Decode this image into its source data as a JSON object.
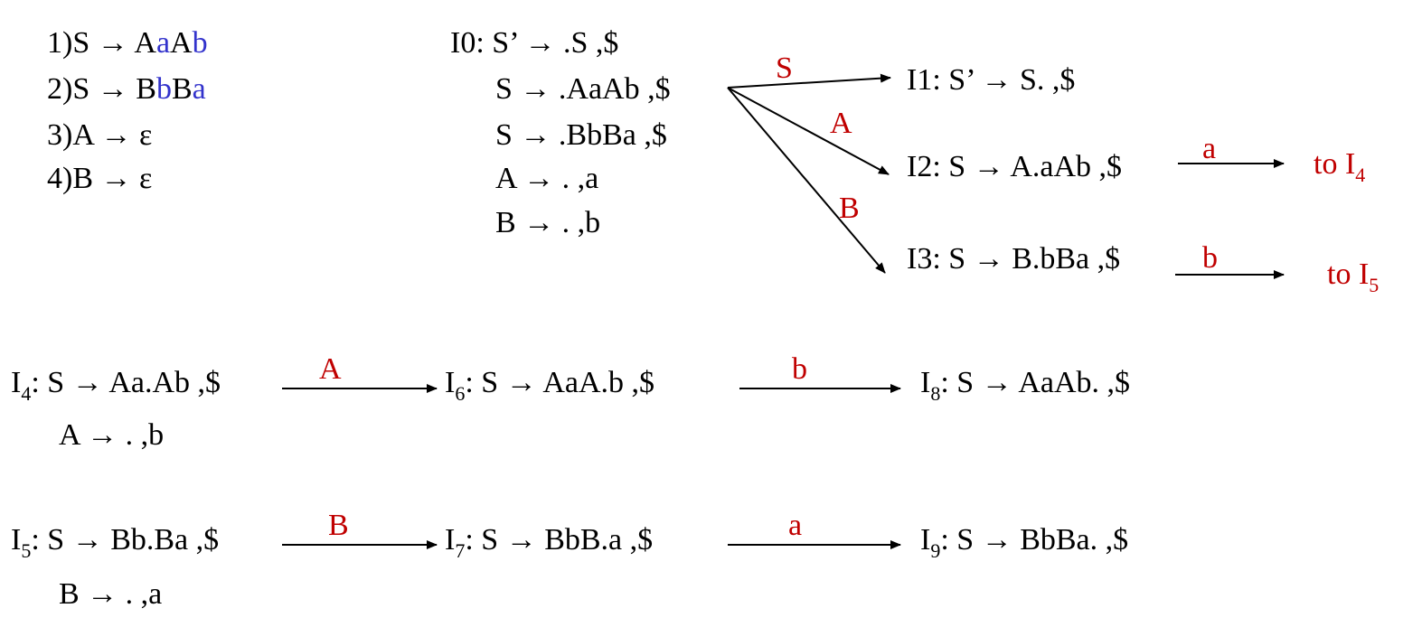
{
  "colors": {
    "label": "#c00000",
    "terminal": "#3333cc",
    "text": "#000000"
  },
  "grammar": [
    {
      "num": "1)",
      "lhs": "S",
      "arrow": "→",
      "rhs": [
        {
          "t": "A",
          "c": "n"
        },
        {
          "t": "a",
          "c": "t"
        },
        {
          "t": "A",
          "c": "n"
        },
        {
          "t": "b",
          "c": "t"
        }
      ]
    },
    {
      "num": "2)",
      "lhs": "S",
      "arrow": "→",
      "rhs": [
        {
          "t": "B",
          "c": "n"
        },
        {
          "t": "b",
          "c": "t"
        },
        {
          "t": "B",
          "c": "n"
        },
        {
          "t": "a",
          "c": "t"
        }
      ]
    },
    {
      "num": "3)",
      "lhs": "A",
      "arrow": "→",
      "rhs": [
        {
          "t": "ε",
          "c": "n"
        }
      ]
    },
    {
      "num": "4)",
      "lhs": "B",
      "arrow": "→",
      "rhs": [
        {
          "t": "ε",
          "c": "n"
        }
      ]
    }
  ],
  "states": {
    "I0": {
      "name": "I0",
      "sep": ": ",
      "items": [
        "S’ → .S ,$",
        "S → .AaAb ,$",
        "S → .BbBa ,$",
        "A → . ,a",
        "B → . ,b"
      ]
    },
    "I1": {
      "name": "I1",
      "sep": ": ",
      "items": [
        "S’ → S. ,$"
      ]
    },
    "I2": {
      "name": "I2",
      "sep": ": ",
      "items": [
        "S → A.aAb ,$"
      ]
    },
    "I3": {
      "name": "I3",
      "sep": ": ",
      "items": [
        "S → B.bBa ,$"
      ]
    },
    "I4": {
      "name": "I",
      "subscript": "4",
      "sep": ": ",
      "items": [
        "S → Aa.Ab ,$",
        "A → . ,b"
      ]
    },
    "I5": {
      "name": "I",
      "subscript": "5",
      "sep": ": ",
      "items": [
        "S → Bb.Ba ,$",
        "B → . ,a"
      ]
    },
    "I6": {
      "name": "I",
      "subscript": "6",
      "sep": ": ",
      "items": [
        "S → AaA.b ,$"
      ]
    },
    "I7": {
      "name": "I",
      "subscript": "7",
      "sep": ": ",
      "items": [
        "S → BbB.a ,$"
      ]
    },
    "I8": {
      "name": "I",
      "subscript": "8",
      "sep": ": ",
      "items": [
        "S → AaAb. ,$"
      ]
    },
    "I9": {
      "name": "I",
      "subscript": "9",
      "sep": ": ",
      "items": [
        "S → BbBa. ,$"
      ]
    }
  },
  "transitions": [
    {
      "from": "I0",
      "to": "I1",
      "symbol": "S"
    },
    {
      "from": "I0",
      "to": "I2",
      "symbol": "A"
    },
    {
      "from": "I0",
      "to": "I3",
      "symbol": "B"
    },
    {
      "from": "I2",
      "to": "I4",
      "symbol": "a"
    },
    {
      "from": "I3",
      "to": "I5",
      "symbol": "b"
    },
    {
      "from": "I4",
      "to": "I6",
      "symbol": "A"
    },
    {
      "from": "I6",
      "to": "I8",
      "symbol": "b"
    },
    {
      "from": "I5",
      "to": "I7",
      "symbol": "B"
    },
    {
      "from": "I7",
      "to": "I9",
      "symbol": "a"
    }
  ],
  "goto_refs": [
    {
      "prefix": "to I",
      "subscript": "4"
    },
    {
      "prefix": "to I",
      "subscript": "5"
    }
  ]
}
